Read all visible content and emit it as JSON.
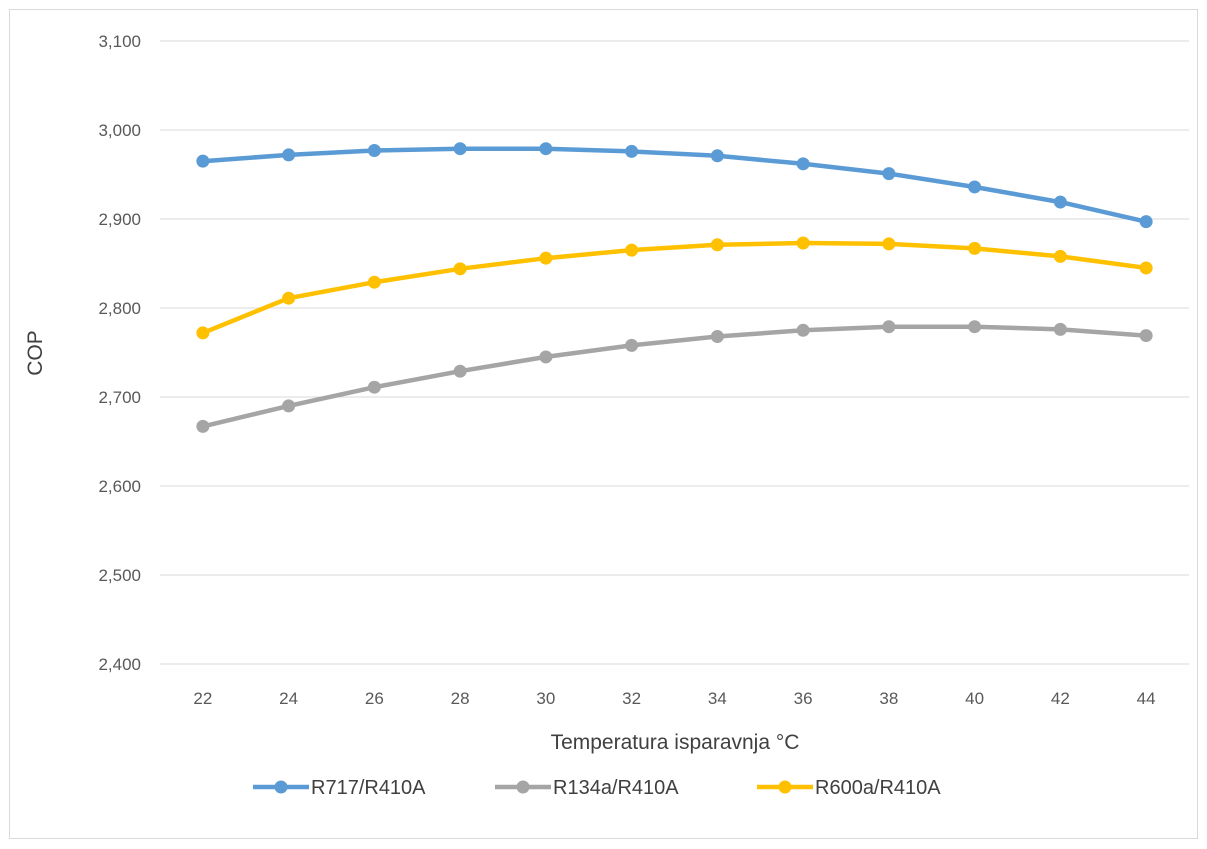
{
  "chart_data": {
    "type": "line",
    "xlabel": "Temperatura isparavnja °C",
    "ylabel": "COP",
    "categories": [
      "22",
      "24",
      "26",
      "28",
      "30",
      "32",
      "34",
      "36",
      "38",
      "40",
      "42",
      "44"
    ],
    "ylim": [
      2.4,
      3.1
    ],
    "yticks": [
      "2,400",
      "2,500",
      "2,600",
      "2,700",
      "2,800",
      "2,900",
      "3,000",
      "3,100"
    ],
    "grid": "horizontal",
    "legend_position": "bottom",
    "series": [
      {
        "name": "R717/R410A",
        "color": "#5b9bd5",
        "values": [
          2.965,
          2.972,
          2.977,
          2.979,
          2.979,
          2.976,
          2.971,
          2.962,
          2.951,
          2.936,
          2.919,
          2.897
        ]
      },
      {
        "name": "R134a/R410A",
        "color": "#a5a5a5",
        "values": [
          2.667,
          2.69,
          2.711,
          2.729,
          2.745,
          2.758,
          2.768,
          2.775,
          2.779,
          2.779,
          2.776,
          2.769
        ]
      },
      {
        "name": "R600a/R410A",
        "color": "#ffc000",
        "values": [
          2.772,
          2.811,
          2.829,
          2.844,
          2.856,
          2.865,
          2.871,
          2.873,
          2.872,
          2.867,
          2.858,
          2.845
        ]
      }
    ]
  }
}
